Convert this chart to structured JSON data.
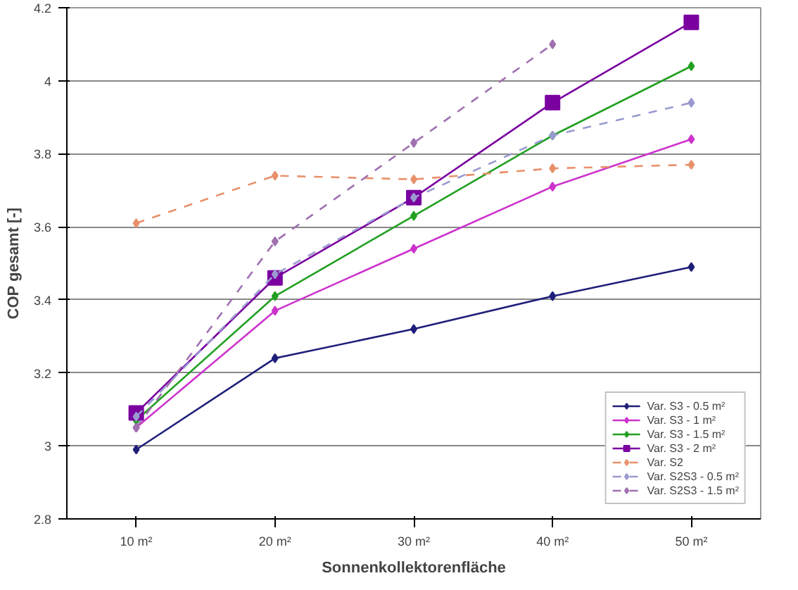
{
  "chart_data": {
    "type": "line",
    "xlabel": "Sonnenkollektorenfläche",
    "ylabel": "COP gesamt [-]",
    "categories": [
      "10 m²",
      "20 m²",
      "30 m²",
      "40 m²",
      "50 m²"
    ],
    "ylim": [
      2.8,
      4.2
    ],
    "yticks": [
      2.8,
      3,
      3.2,
      3.4,
      3.6,
      3.8,
      4,
      4.2
    ],
    "grid": "y",
    "legend": "bottom right",
    "marker": "diamond",
    "line_style": "solid",
    "series": [
      {
        "name": "Var. S3 - 0.5 m²",
        "color": "#1f1f7a",
        "values": [
          2.99,
          3.24,
          3.32,
          3.41,
          3.49
        ]
      },
      {
        "name": "Var. S3 - 1 m²",
        "color": "#cc33cc",
        "values": [
          3.05,
          3.37,
          3.54,
          3.71,
          3.84
        ]
      },
      {
        "name": "Var. S3 - 1.5 m²",
        "color": "#22a022",
        "values": [
          3.07,
          3.41,
          3.63,
          3.85,
          4.04
        ]
      },
      {
        "name": "Var. S3 - 2 m²",
        "color": "#7a00a0",
        "values": [
          3.09,
          3.46,
          3.68,
          3.94,
          4.16
        ],
        "marker": "square"
      },
      {
        "name": "Var. S2",
        "color": "#e8906a",
        "values": [
          3.61,
          3.74,
          3.73,
          3.76,
          3.77
        ],
        "line_style": "dashed"
      },
      {
        "name": "Var. S2S3 - 0.5 m²",
        "color": "#9a9ad0",
        "values": [
          3.08,
          3.47,
          3.68,
          3.85,
          3.94
        ],
        "line_style": "dashed"
      },
      {
        "name": "Var. S2S3 - 1.5 m²",
        "color": "#a070b0",
        "values": [
          3.05,
          3.56,
          3.83,
          4.1,
          null
        ],
        "line_style": "dashed"
      }
    ]
  }
}
